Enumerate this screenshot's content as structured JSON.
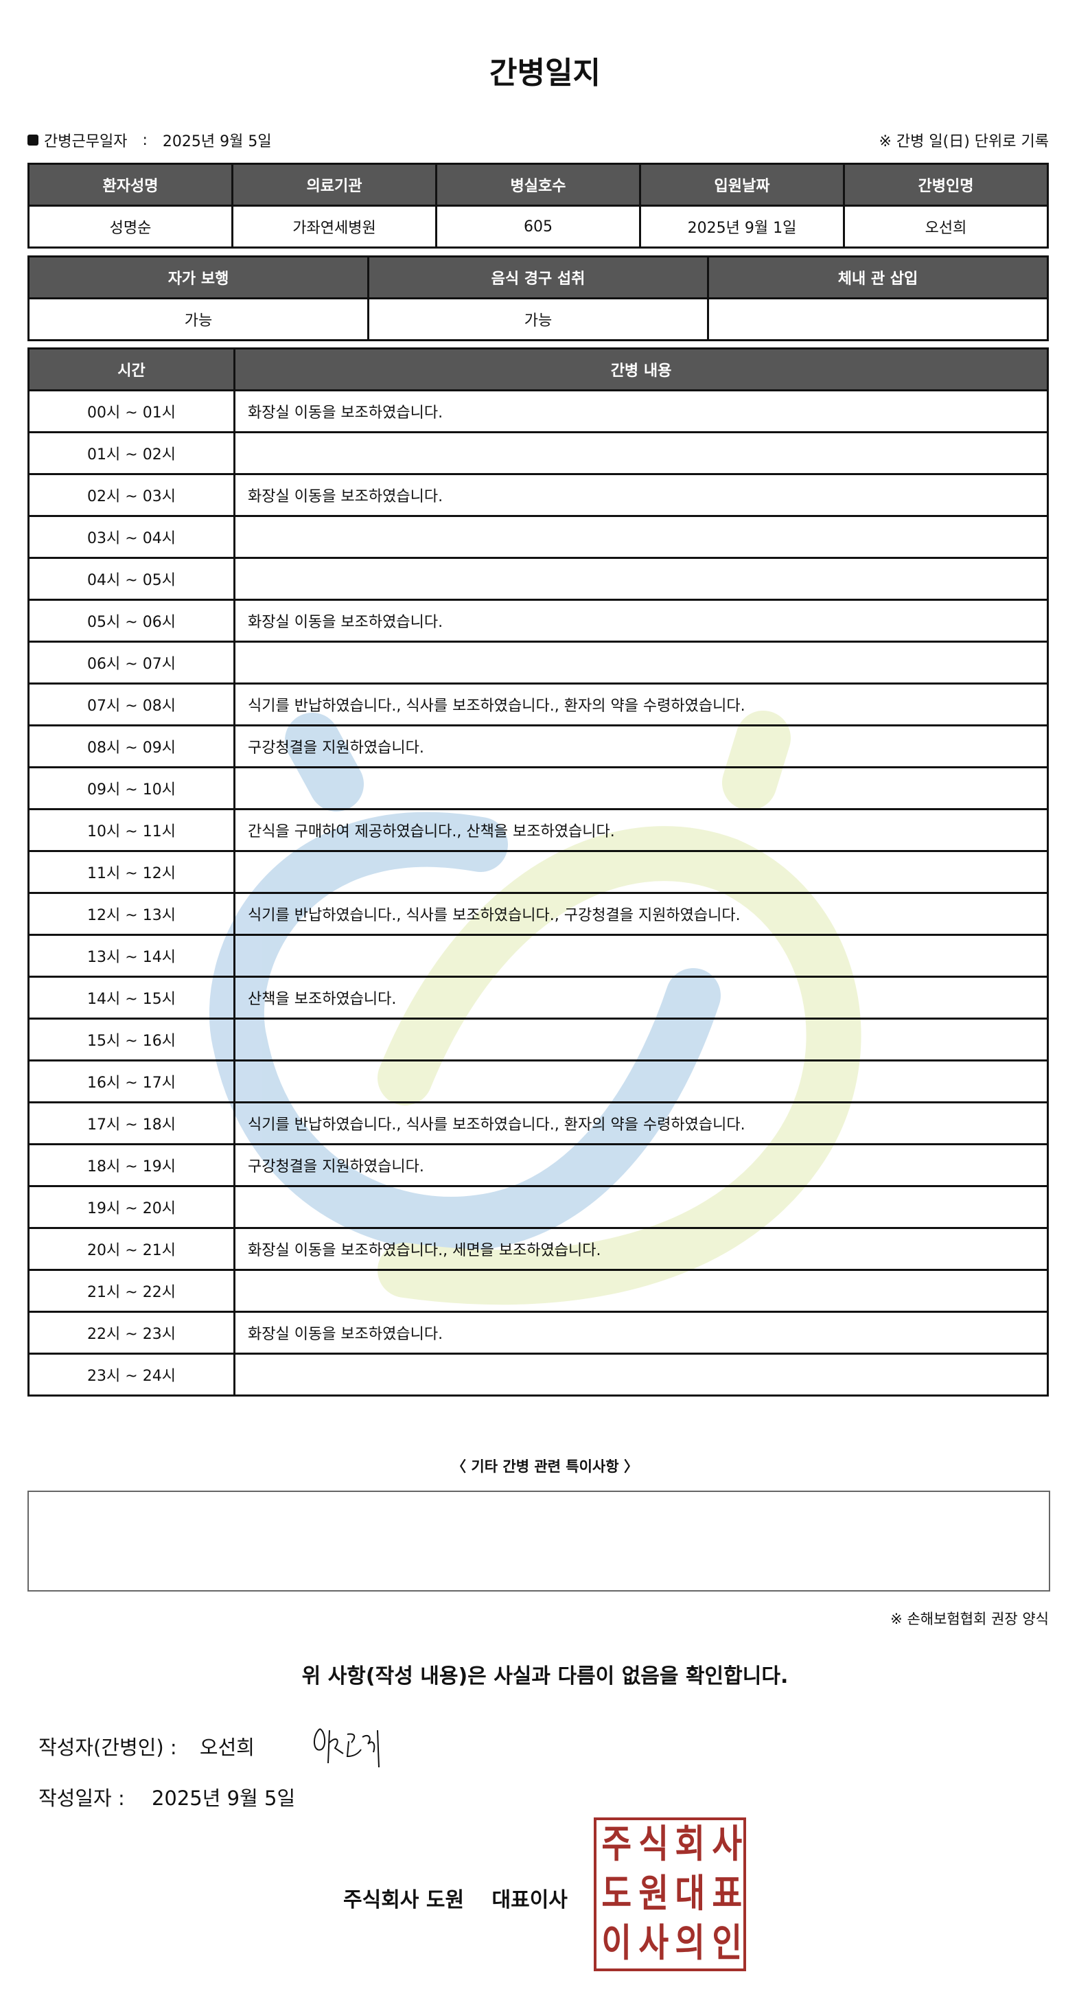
{
  "title": "간병일지",
  "info": {
    "work_date_label": "간병근무일자",
    "colon": ":",
    "work_date": "2025년 9월 5일",
    "note": "※ 간병 일(日) 단위로 기록"
  },
  "patient_table": {
    "headers": [
      "환자성명",
      "의료기관",
      "병실호수",
      "입원날짜",
      "간병인명"
    ],
    "values": [
      "성명순",
      "가좌연세병원",
      "605",
      "2025년 9월 1일",
      "오선희"
    ]
  },
  "status_table": {
    "headers": [
      "자가 보행",
      "음식 경구 섭취",
      "체내 관 삽입"
    ],
    "values": [
      "가능",
      "가능",
      ""
    ]
  },
  "log_table": {
    "headers": [
      "시간",
      "간병 내용"
    ],
    "rows": [
      {
        "time": "00시 ~ 01시",
        "content": "화장실 이동을 보조하였습니다."
      },
      {
        "time": "01시 ~ 02시",
        "content": ""
      },
      {
        "time": "02시 ~ 03시",
        "content": "화장실 이동을 보조하였습니다."
      },
      {
        "time": "03시 ~ 04시",
        "content": ""
      },
      {
        "time": "04시 ~ 05시",
        "content": ""
      },
      {
        "time": "05시 ~ 06시",
        "content": "화장실 이동을 보조하였습니다."
      },
      {
        "time": "06시 ~ 07시",
        "content": ""
      },
      {
        "time": "07시 ~ 08시",
        "content": "식기를 반납하였습니다., 식사를 보조하였습니다., 환자의 약을 수령하였습니다."
      },
      {
        "time": "08시 ~ 09시",
        "content": "구강청결을 지원하였습니다."
      },
      {
        "time": "09시 ~ 10시",
        "content": ""
      },
      {
        "time": "10시 ~ 11시",
        "content": "간식을 구매하여 제공하였습니다., 산책을 보조하였습니다."
      },
      {
        "time": "11시 ~ 12시",
        "content": ""
      },
      {
        "time": "12시 ~ 13시",
        "content": "식기를 반납하였습니다., 식사를 보조하였습니다., 구강청결을 지원하였습니다."
      },
      {
        "time": "13시 ~ 14시",
        "content": ""
      },
      {
        "time": "14시 ~ 15시",
        "content": "산책을 보조하였습니다."
      },
      {
        "time": "15시 ~ 16시",
        "content": ""
      },
      {
        "time": "16시 ~ 17시",
        "content": ""
      },
      {
        "time": "17시 ~ 18시",
        "content": "식기를 반납하였습니다., 식사를 보조하였습니다., 환자의 약을 수령하였습니다."
      },
      {
        "time": "18시 ~ 19시",
        "content": "구강청결을 지원하였습니다."
      },
      {
        "time": "19시 ~ 20시",
        "content": ""
      },
      {
        "time": "20시 ~ 21시",
        "content": "화장실 이동을 보조하였습니다., 세면을 보조하였습니다."
      },
      {
        "time": "21시 ~ 22시",
        "content": ""
      },
      {
        "time": "22시 ~ 23시",
        "content": "화장실 이동을 보조하였습니다."
      },
      {
        "time": "23시 ~ 24시",
        "content": ""
      }
    ]
  },
  "notes": {
    "label": "〈 기타 간병 관련 특이사항 〉",
    "value": ""
  },
  "recommend_note": "※ 손해보험협회 권장 양식",
  "confirm_text": "위 사항(작성 내용)은 사실과 다름이 없음을 확인합니다.",
  "writer": {
    "label": "작성자(간병인) :",
    "name": "오선희"
  },
  "written_date": {
    "label": "작성일자 :",
    "value": "2025년 9월 5일"
  },
  "company": {
    "name": "주식회사 도원",
    "title": "대표이사"
  },
  "stamp": {
    "lettering": "주식회사도원대표이사의인",
    "color": "#a3302b"
  },
  "colors": {
    "header_bg": "#575757",
    "watermark_blue": "#c6dcee",
    "watermark_green": "#eef3d2"
  }
}
